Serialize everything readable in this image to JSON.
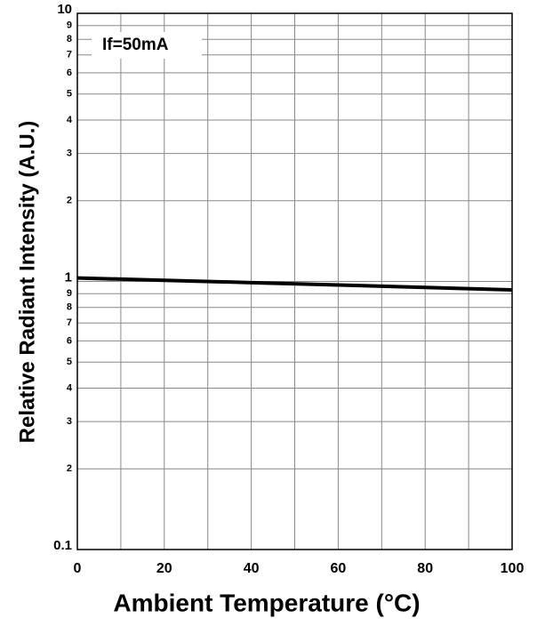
{
  "chart_data": {
    "type": "line",
    "xlabel": "Ambient Temperature (°C)",
    "ylabel": "Relative Radiant Intensity (A.U.)",
    "annotation": "If=50mA",
    "x": [
      0,
      20,
      40,
      60,
      80,
      100
    ],
    "series": [
      {
        "name": "If=50mA",
        "color": "#000000",
        "values": [
          1.03,
          1.01,
          0.99,
          0.97,
          0.95,
          0.93
        ]
      }
    ],
    "xlim": [
      0,
      100
    ],
    "xticks": [
      0,
      20,
      40,
      60,
      80,
      100
    ],
    "xminor_ticks": [
      10,
      30,
      50,
      70,
      90
    ],
    "ylim": [
      0.1,
      10
    ],
    "yscale": "log",
    "yticks": [
      0.1,
      {
        "value": 0.2,
        "label": "2"
      },
      {
        "value": 0.3,
        "label": "3"
      },
      {
        "value": 0.4,
        "label": "4"
      },
      {
        "value": 0.5,
        "label": "5"
      },
      {
        "value": 0.6,
        "label": "6"
      },
      {
        "value": 0.7,
        "label": "7"
      },
      {
        "value": 0.8,
        "label": "8"
      },
      {
        "value": 0.9,
        "label": "9"
      },
      1,
      2,
      3,
      4,
      5,
      6,
      7,
      8,
      9,
      10
    ],
    "grid": true
  }
}
